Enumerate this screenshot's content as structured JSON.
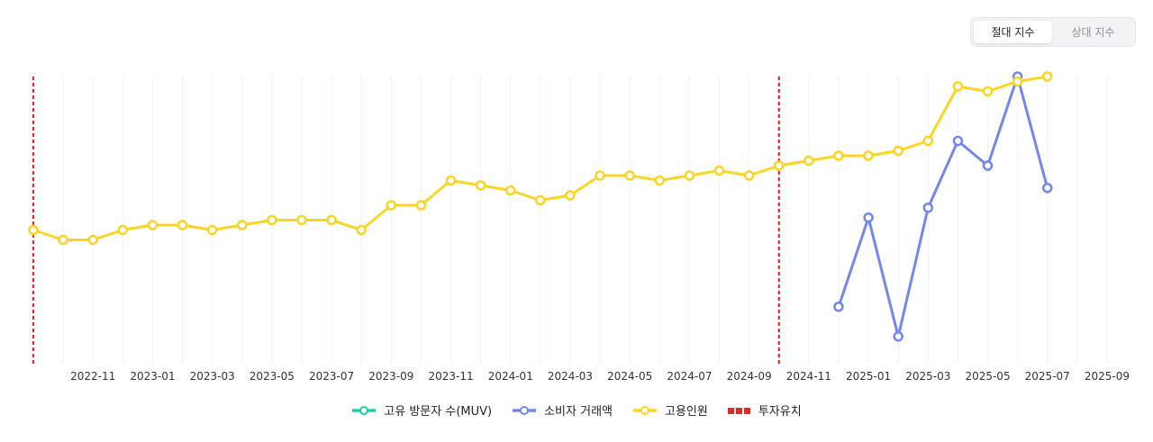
{
  "toggle": {
    "absolute_label": "절대 지수",
    "relative_label": "상대 지수"
  },
  "colors": {
    "muv": "#1fcf9f",
    "transaction": "#7388ea",
    "employees": "#fbd526",
    "investment": "#e8272a",
    "grid": "#f0f2f5"
  },
  "chart_data": {
    "type": "line",
    "x_ticks": [
      "2022-11",
      "2023-01",
      "2023-03",
      "2023-05",
      "2023-07",
      "2023-09",
      "2023-11",
      "2024-01",
      "2024-03",
      "2024-05",
      "2024-07",
      "2024-09",
      "2024-11",
      "2025-01",
      "2025-03",
      "2025-05",
      "2025-07",
      "2025-09"
    ],
    "x_range": [
      "2022-09",
      "2025-09"
    ],
    "y_axis_labels": "none",
    "grid": "vertical",
    "legend_position": "bottom-center",
    "series": [
      {
        "name": "고유 방문자 수(MUV)",
        "key": "muv",
        "points": []
      },
      {
        "name": "소비자 거래액",
        "key": "transaction",
        "points": [
          [
            "2024-12",
            11.5
          ],
          [
            "2025-01",
            29.5
          ],
          [
            "2025-02",
            5.5
          ],
          [
            "2025-03",
            31.5
          ],
          [
            "2025-04",
            45.0
          ],
          [
            "2025-05",
            40.0
          ],
          [
            "2025-06",
            58.0
          ],
          [
            "2025-07",
            35.5
          ]
        ]
      },
      {
        "name": "고용인원",
        "key": "employees",
        "points": [
          [
            "2022-09",
            27.0
          ],
          [
            "2022-10",
            25.0
          ],
          [
            "2022-11",
            25.0
          ],
          [
            "2022-12",
            27.0
          ],
          [
            "2023-01",
            28.0
          ],
          [
            "2023-02",
            28.0
          ],
          [
            "2023-03",
            27.0
          ],
          [
            "2023-04",
            28.0
          ],
          [
            "2023-05",
            29.0
          ],
          [
            "2023-06",
            29.0
          ],
          [
            "2023-07",
            29.0
          ],
          [
            "2023-08",
            27.0
          ],
          [
            "2023-09",
            32.0
          ],
          [
            "2023-10",
            32.0
          ],
          [
            "2023-11",
            37.0
          ],
          [
            "2023-12",
            36.0
          ],
          [
            "2024-01",
            35.0
          ],
          [
            "2024-02",
            33.0
          ],
          [
            "2024-03",
            34.0
          ],
          [
            "2024-04",
            38.0
          ],
          [
            "2024-05",
            38.0
          ],
          [
            "2024-06",
            37.0
          ],
          [
            "2024-07",
            38.0
          ],
          [
            "2024-08",
            39.0
          ],
          [
            "2024-09",
            38.0
          ],
          [
            "2024-10",
            40.0
          ],
          [
            "2024-11",
            41.0
          ],
          [
            "2024-12",
            42.0
          ],
          [
            "2025-01",
            42.0
          ],
          [
            "2025-02",
            43.0
          ],
          [
            "2025-03",
            45.0
          ],
          [
            "2025-04",
            56.0
          ],
          [
            "2025-05",
            55.0
          ],
          [
            "2025-06",
            57.0
          ],
          [
            "2025-07",
            58.0
          ]
        ]
      }
    ],
    "events": {
      "name": "투자유치",
      "dates": [
        "2022-09",
        "2024-10"
      ]
    },
    "ylim": [
      0,
      58
    ]
  }
}
